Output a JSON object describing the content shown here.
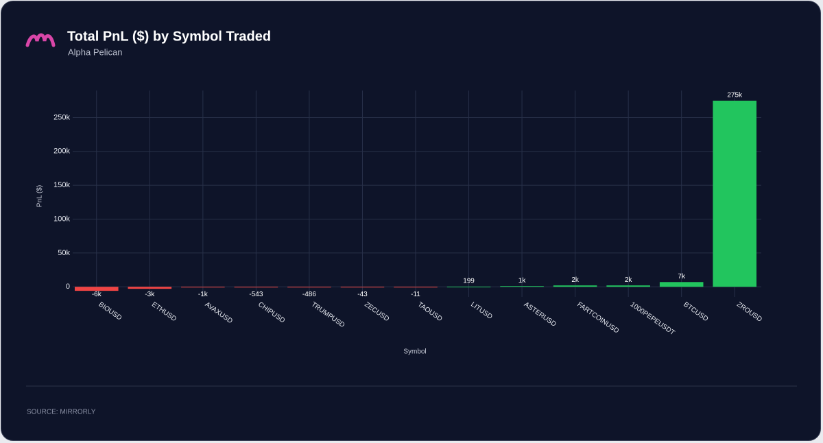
{
  "chart_data": {
    "type": "bar",
    "title": "Total PnL ($) by Symbol Traded",
    "subtitle": "Alpha Pelican",
    "y_label": "PnL ($)",
    "x_label": "Symbol",
    "source": "SOURCE: MIRRORLY",
    "categories": [
      "BIOUSD",
      "ETHUSD",
      "AVAXUSD",
      "CHIPUSD",
      "TRUMPUSD",
      "ZECUSD",
      "TAOUSD",
      "LITUSD",
      "ASTERUSD",
      "FARTCOINUSD",
      "1000PEPEUSDT",
      "BTCUSD",
      "ZROUSD"
    ],
    "values": [
      -6000,
      -3000,
      -1000,
      -543,
      -486,
      -43,
      -11,
      199,
      1000,
      2000,
      2000,
      7000,
      275000
    ],
    "value_labels": [
      "-6k",
      "-3k",
      "-1k",
      "-543",
      "-486",
      "-43",
      "-11",
      "199",
      "1k",
      "2k",
      "2k",
      "7k",
      "275k"
    ],
    "colors": [
      "#ef4444",
      "#ef4444",
      "#ef4444",
      "#ef4444",
      "#ef4444",
      "#ef4444",
      "#ef4444",
      "#22c55e",
      "#22c55e",
      "#22c55e",
      "#22c55e",
      "#22c55e",
      "#22c55e"
    ],
    "ylim": [
      -15000,
      290000
    ],
    "yticks": [
      0,
      {
        "value": 50000,
        "label": "50k"
      },
      {
        "value": 100000,
        "label": "100k"
      },
      {
        "value": 150000,
        "label": "150k"
      },
      {
        "value": 200000,
        "label": "200k"
      },
      {
        "value": 250000,
        "label": "250k"
      }
    ],
    "grid": true
  }
}
